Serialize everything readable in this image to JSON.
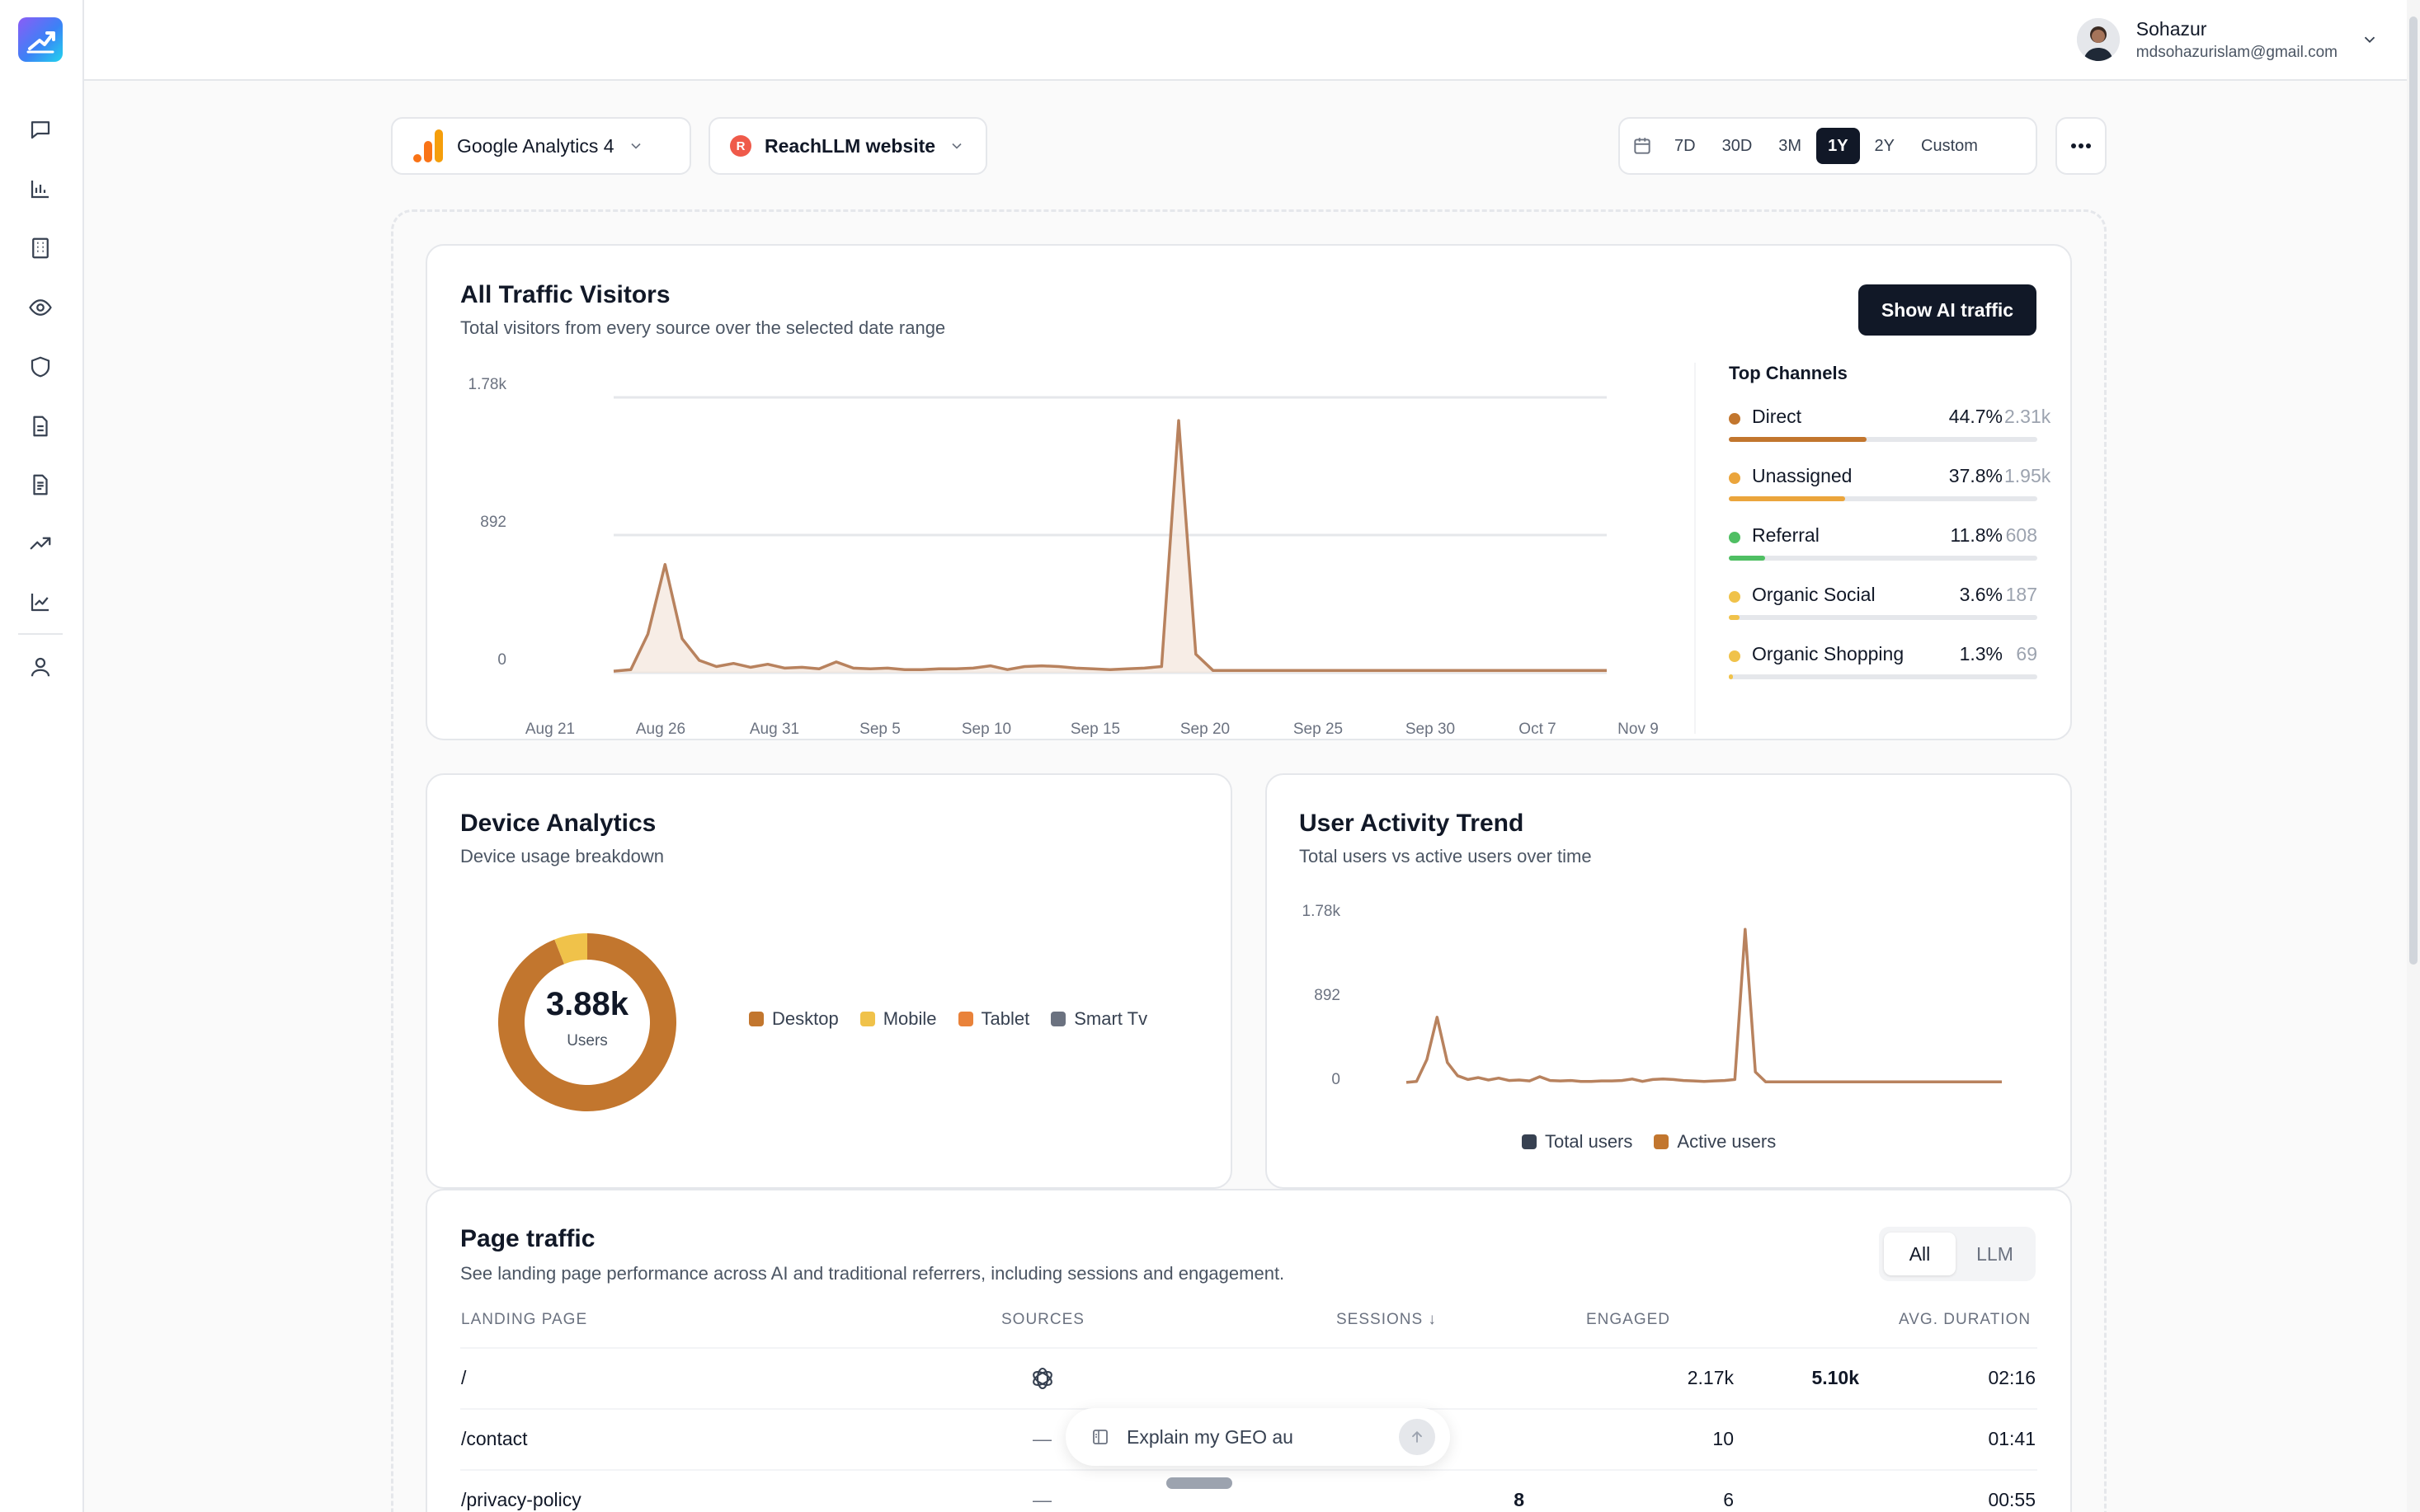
{
  "colors": {
    "accent": "#111827",
    "chart_line": "#b8825e",
    "chart_fill": "#f3e5dc",
    "direct": "#c2762e",
    "unassigned": "#eba53c",
    "referral": "#4fbf63",
    "organic_social": "#f0c24a",
    "organic_shopping": "#f0c24a",
    "desktop": "#c2762e",
    "mobile": "#f0c24a",
    "tablet": "#e9823a",
    "smart_tv": "#6b7280",
    "total_users": "#374151",
    "active_users": "#c2762e"
  },
  "sidebar": {
    "icons": [
      "chat-icon",
      "bar-chart-icon",
      "building-icon",
      "eye-icon",
      "shield-icon",
      "document-icon",
      "document-alt-icon",
      "trending-up-icon",
      "line-chart-icon",
      "user-icon"
    ]
  },
  "user": {
    "name": "Sohazur",
    "email": "mdsohazurislam@gmail.com"
  },
  "filters": {
    "analytics": "Google Analytics 4",
    "site_initial": "R",
    "site": "ReachLLM website",
    "ranges": [
      "7D",
      "30D",
      "3M",
      "1Y",
      "2Y",
      "Custom"
    ],
    "active_range": "1Y"
  },
  "traffic": {
    "title": "All Traffic Visitors",
    "subtitle": "Total visitors from every source over the selected date range",
    "button": "Show AI traffic",
    "channels_title": "Top Channels",
    "channels": [
      {
        "name": "Direct",
        "pct": "44.7%",
        "count": "2.31k",
        "share": 0.447,
        "color": "#c2762e"
      },
      {
        "name": "Unassigned",
        "pct": "37.8%",
        "count": "1.95k",
        "share": 0.378,
        "color": "#eba53c"
      },
      {
        "name": "Referral",
        "pct": "11.8%",
        "count": "608",
        "share": 0.118,
        "color": "#4fbf63"
      },
      {
        "name": "Organic Social",
        "pct": "3.6%",
        "count": "187",
        "share": 0.036,
        "color": "#f0c24a"
      },
      {
        "name": "Organic Shopping",
        "pct": "1.3%",
        "count": "69",
        "share": 0.013,
        "color": "#f0c24a"
      }
    ]
  },
  "device": {
    "title": "Device Analytics",
    "subtitle": "Device usage breakdown",
    "total": "3.88k",
    "unit": "Users",
    "legend": [
      "Desktop",
      "Mobile",
      "Tablet",
      "Smart Tv"
    ]
  },
  "activity": {
    "title": "User Activity Trend",
    "subtitle": "Total users vs active users over time",
    "legend": [
      "Total users",
      "Active users"
    ]
  },
  "chart_data": [
    {
      "type": "area",
      "title": "All Traffic Visitors",
      "x_ticks": [
        "Aug 21",
        "Aug 26",
        "Aug 31",
        "Sep 5",
        "Sep 10",
        "Sep 15",
        "Sep 20",
        "Sep 25",
        "Sep 30",
        "Oct 7",
        "Nov 9"
      ],
      "y_ticks": [
        "0",
        "892",
        "1.78k"
      ],
      "ylim": [
        0,
        1780
      ],
      "series": [
        {
          "name": "Visitors",
          "values": [
            10,
            20,
            250,
            700,
            220,
            80,
            40,
            60,
            35,
            55,
            30,
            35,
            25,
            70,
            30,
            25,
            30,
            20,
            20,
            25,
            25,
            30,
            45,
            20,
            40,
            45,
            40,
            30,
            25,
            20,
            25,
            30,
            40,
            1630,
            120,
            15,
            15,
            15,
            15,
            15,
            15,
            15,
            15,
            15,
            15,
            15,
            15,
            15,
            15,
            15,
            15,
            15,
            15,
            15,
            15,
            15,
            15,
            15,
            15
          ]
        }
      ]
    },
    {
      "type": "pie",
      "title": "Device Analytics",
      "categories": [
        "Desktop",
        "Mobile",
        "Tablet",
        "Smart Tv"
      ],
      "values": [
        0.94,
        0.06,
        0,
        0
      ]
    },
    {
      "type": "line",
      "title": "User Activity Trend",
      "y_ticks": [
        "0",
        "892",
        "1.78k"
      ],
      "ylim": [
        0,
        1780
      ],
      "series": [
        {
          "name": "Total users",
          "values": [
            10,
            20,
            250,
            700,
            220,
            80,
            40,
            60,
            35,
            55,
            30,
            35,
            25,
            70,
            30,
            25,
            30,
            20,
            20,
            25,
            25,
            30,
            45,
            20,
            40,
            45,
            40,
            30,
            25,
            20,
            25,
            30,
            40,
            1630,
            120,
            15,
            15,
            15,
            15,
            15,
            15,
            15,
            15,
            15,
            15,
            15,
            15,
            15,
            15,
            15,
            15,
            15,
            15,
            15,
            15,
            15,
            15,
            15,
            15
          ]
        },
        {
          "name": "Active users",
          "values": [
            10,
            20,
            250,
            700,
            220,
            80,
            40,
            60,
            35,
            55,
            30,
            35,
            25,
            70,
            30,
            25,
            30,
            20,
            20,
            25,
            25,
            30,
            45,
            20,
            40,
            45,
            40,
            30,
            25,
            20,
            25,
            30,
            40,
            1630,
            120,
            15,
            15,
            15,
            15,
            15,
            15,
            15,
            15,
            15,
            15,
            15,
            15,
            15,
            15,
            15,
            15,
            15,
            15,
            15,
            15,
            15,
            15,
            15,
            15
          ]
        }
      ]
    }
  ],
  "pages": {
    "title": "Page traffic",
    "subtitle": "See landing page performance across AI and traditional referrers, including sessions and engagement.",
    "toggle": [
      "All",
      "LLM"
    ],
    "columns": [
      "LANDING PAGE",
      "SOURCES",
      "SESSIONS ↓",
      "ENGAGED",
      "AVG. DURATION"
    ],
    "rows": [
      {
        "page": "/",
        "source": "openai-icon",
        "sessions": "5.10k",
        "engaged": "2.17k",
        "duration": "02:16"
      },
      {
        "page": "/contact",
        "source": "—",
        "sessions": "",
        "engaged": "10",
        "duration": "01:41"
      },
      {
        "page": "/privacy-policy",
        "source": "—",
        "sessions": "8",
        "engaged": "6",
        "duration": "00:55"
      }
    ]
  },
  "chat": {
    "placeholder": "Explain my GEO au"
  }
}
